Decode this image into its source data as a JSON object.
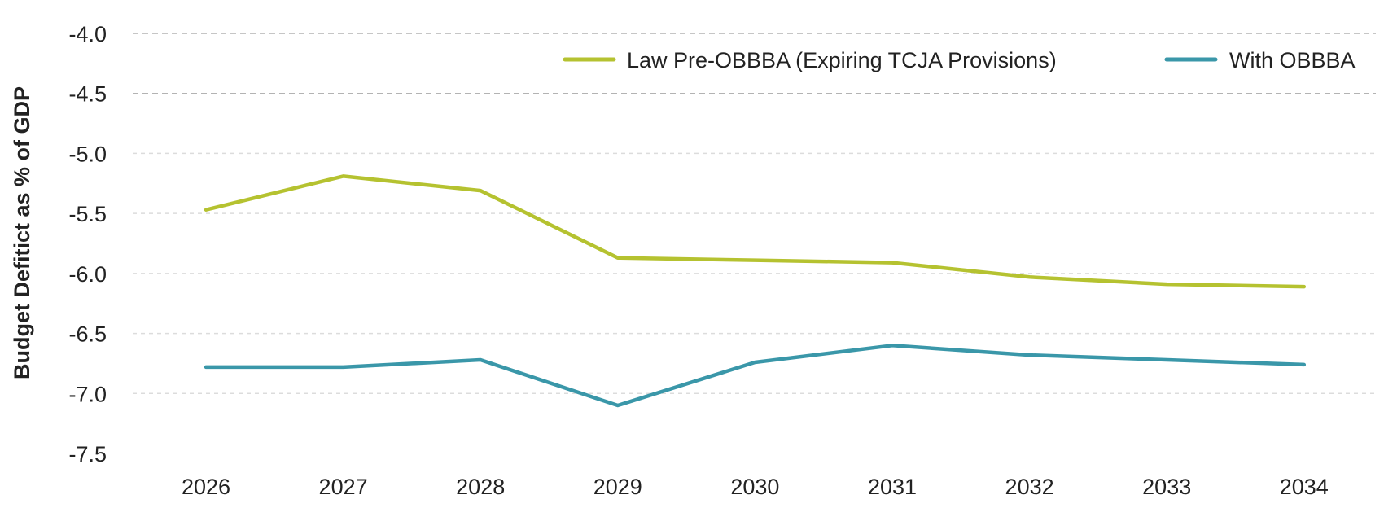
{
  "chart_data": {
    "type": "line",
    "title": "",
    "xlabel": "",
    "ylabel": "Budget Defitict as % of GDP",
    "x": [
      "2026",
      "2027",
      "2028",
      "2029",
      "2030",
      "2031",
      "2032",
      "2033",
      "2034"
    ],
    "ylim": [
      -7.5,
      -4.0
    ],
    "yticks": [
      "-4.0",
      "-4.5",
      "-5.0",
      "-5.5",
      "-6.0",
      "-6.5",
      "-7.0",
      "-7.5"
    ],
    "grid": "horizontal dashed",
    "legend_position": "top-right",
    "series": [
      {
        "name": "Law Pre-OBBBA (Expiring TCJA Provisions)",
        "color": "#b5c230",
        "values": [
          -5.47,
          -5.19,
          -5.31,
          -5.87,
          -5.89,
          -5.91,
          -6.03,
          -6.09,
          -6.11
        ]
      },
      {
        "name": "With OBBBA",
        "color": "#3a97a9",
        "values": [
          -6.78,
          -6.78,
          -6.72,
          -7.1,
          -6.74,
          -6.6,
          -6.68,
          -6.72,
          -6.76
        ]
      }
    ]
  }
}
